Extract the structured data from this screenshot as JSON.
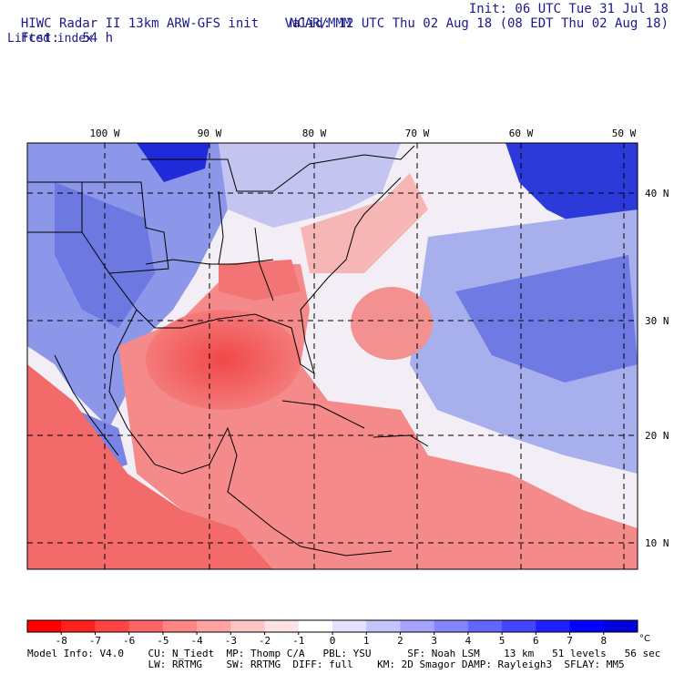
{
  "header": {
    "title": "HIWC Radar II 13km ARW-GFS init",
    "org": "NCAR/MMM",
    "init": "Init: 06 UTC Tue 31 Jul 18",
    "fcst_label": "Fcst:",
    "fcst_value": "54 h",
    "valid": "Valid: 12 UTC Thu 02 Aug 18 (08 EDT Thu 02 Aug 18)",
    "field": "Lifted index"
  },
  "map": {
    "lon_labels": [
      "100 W",
      "90 W",
      "80 W",
      "70 W",
      "60 W",
      "50 W"
    ],
    "lat_labels": [
      "40 N",
      "30 N",
      "20 N",
      "10 N"
    ],
    "colors": {
      "negative": "#f05050",
      "positive": "#4a55e0",
      "neutral": "#f6f0f4"
    }
  },
  "colorbar": {
    "ticks": [
      "-8",
      "-7",
      "-6",
      "-5",
      "-4",
      "-3",
      "-2",
      "-1",
      "0",
      "1",
      "2",
      "3",
      "4",
      "5",
      "6",
      "7",
      "8"
    ],
    "unit": "°C",
    "colors": [
      "#ff0000",
      "#ff2020",
      "#ff4444",
      "#ff6464",
      "#ff8484",
      "#ffa4a4",
      "#ffc4c4",
      "#ffe2e2",
      "#ffffff",
      "#e2e2ff",
      "#c4c4ff",
      "#a4a4ff",
      "#8484ff",
      "#6464ff",
      "#4444ff",
      "#2020ff",
      "#0000ff",
      "#0000dd"
    ]
  },
  "model_info": {
    "line1": "Model Info: V4.0    CU: N_Tiedt  MP: Thomp C/A   PBL: YSU      SF: Noah LSM    13 km   51 levels   56 sec",
    "line2": "                    LW: RRTMG    SW: RRTMG  DIFF: full    KM: 2D Smagor DAMP: Rayleigh3  SFLAY: MM5"
  }
}
